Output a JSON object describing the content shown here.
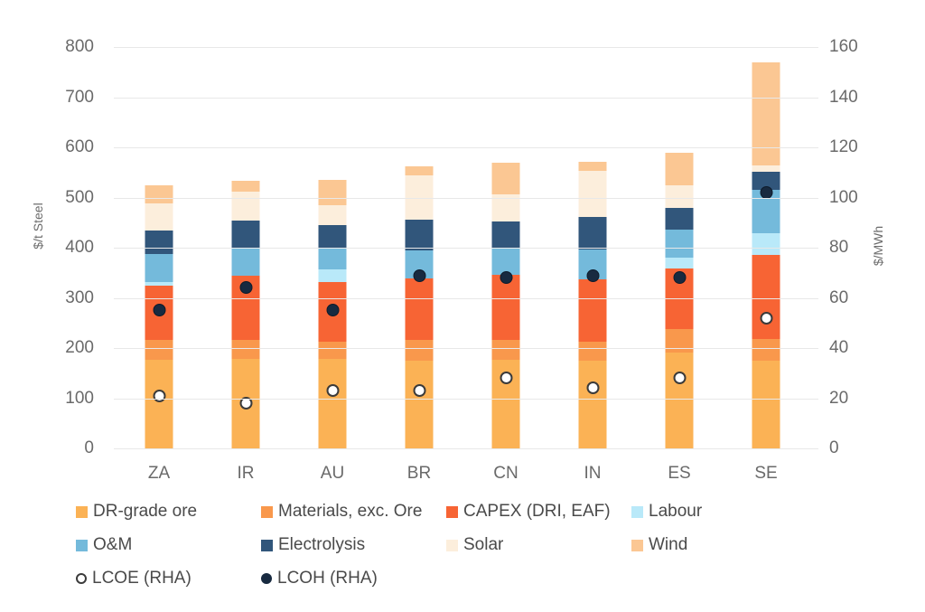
{
  "chart_data": {
    "type": "bar",
    "variant": "stacked-columns-with-point-overlay",
    "title": "",
    "categories": [
      "ZA",
      "IR",
      "AU",
      "BR",
      "CN",
      "IN",
      "ES",
      "SE"
    ],
    "series": [
      {
        "name": "DR-grade ore",
        "color": "#FBB255",
        "values": [
          176,
          178,
          178,
          175,
          177,
          175,
          191,
          175
        ]
      },
      {
        "name": "Materials, exc. Ore",
        "color": "#F9984C",
        "values": [
          40,
          39,
          35,
          42,
          39,
          38,
          47,
          43
        ]
      },
      {
        "name": "CAPEX (DRI, EAF)",
        "color": "#F76434",
        "values": [
          108,
          128,
          118,
          121,
          130,
          124,
          120,
          167
        ]
      },
      {
        "name": "Labour",
        "color": "#B9E9F9",
        "values": [
          8,
          0,
          26,
          0,
          0,
          0,
          23,
          43
        ]
      },
      {
        "name": "O&M",
        "color": "#74BADB",
        "values": [
          56,
          54,
          43,
          57,
          54,
          59,
          55,
          87
        ]
      },
      {
        "name": "Electrolysis",
        "color": "#31567B",
        "values": [
          46,
          56,
          45,
          61,
          52,
          66,
          44,
          37
        ]
      },
      {
        "name": "Solar",
        "color": "#FCEEDC",
        "values": [
          54,
          57,
          40,
          89,
          55,
          91,
          45,
          12
        ]
      },
      {
        "name": "Wind",
        "color": "#FBC793",
        "values": [
          37,
          21,
          50,
          17,
          63,
          19,
          65,
          206
        ]
      }
    ],
    "markers": [
      {
        "name": "LCOE (RHA)",
        "style": "open",
        "color": "#FFFFFF",
        "outline": "#3B3B3B",
        "axis": "right",
        "values": [
          21,
          18,
          23,
          23,
          28,
          24,
          28,
          52
        ]
      },
      {
        "name": "LCOH (RHA)",
        "style": "filled",
        "color": "#182A40",
        "outline": "#0D1B2B",
        "axis": "right",
        "values": [
          55,
          64,
          55,
          69,
          68,
          69,
          68,
          102
        ]
      }
    ],
    "left_axis": {
      "label": "$/t Steel",
      "min": 0,
      "max": 800,
      "step": 100
    },
    "right_axis": {
      "label": "$/MWh",
      "min": 0,
      "max": 160,
      "step": 20
    },
    "grid": true,
    "legend_position": "bottom",
    "legend_rows": [
      [
        "DR-grade ore",
        "Materials, exc. Ore",
        "CAPEX (DRI, EAF)",
        "Labour"
      ],
      [
        "O&M",
        "Electrolysis",
        "Solar",
        "Wind"
      ],
      [
        "LCOE (RHA)",
        "LCOH (RHA)"
      ]
    ]
  }
}
